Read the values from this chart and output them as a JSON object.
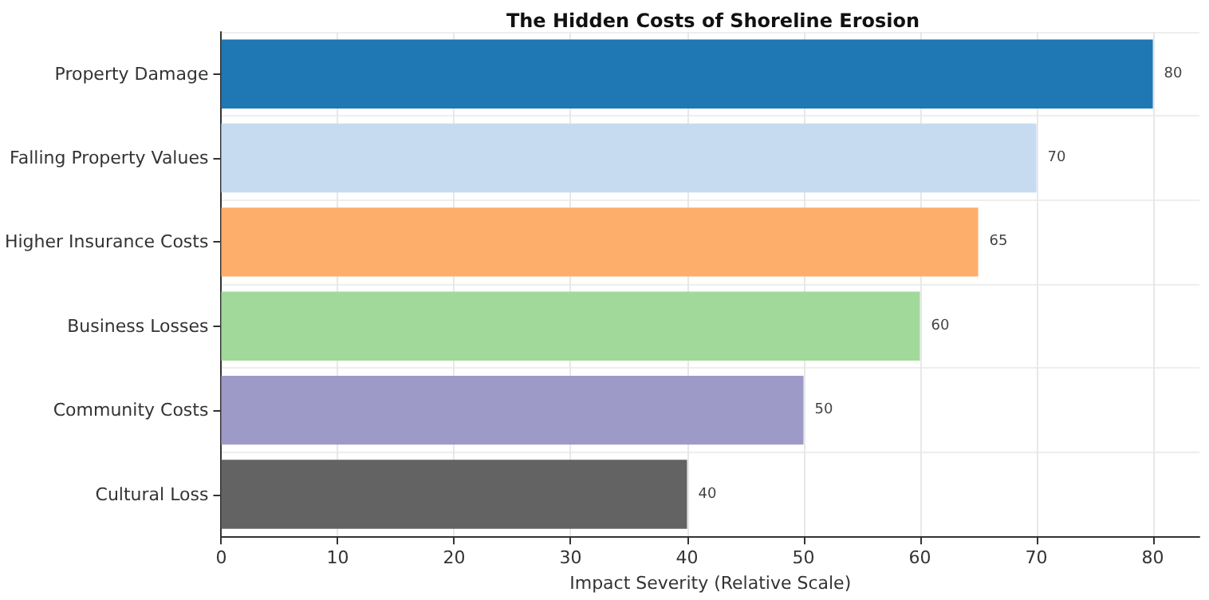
{
  "chart_data": {
    "type": "bar",
    "orientation": "horizontal",
    "title": "The Hidden Costs of Shoreline Erosion",
    "xlabel": "Impact Severity (Relative Scale)",
    "categories": [
      "Property Damage",
      "Falling Property Values",
      "Higher Insurance Costs",
      "Business Losses",
      "Community Costs",
      "Cultural Loss"
    ],
    "values": [
      80,
      70,
      65,
      60,
      50,
      40
    ],
    "colors": [
      "#1f77b4",
      "#c6dbef",
      "#fdae6b",
      "#a1d99b",
      "#9e9ac8",
      "#636363"
    ],
    "xlim": [
      0,
      84
    ],
    "xticks": [
      0,
      10,
      20,
      30,
      40,
      50,
      60,
      70,
      80
    ],
    "grid": true,
    "data_labels": true
  }
}
